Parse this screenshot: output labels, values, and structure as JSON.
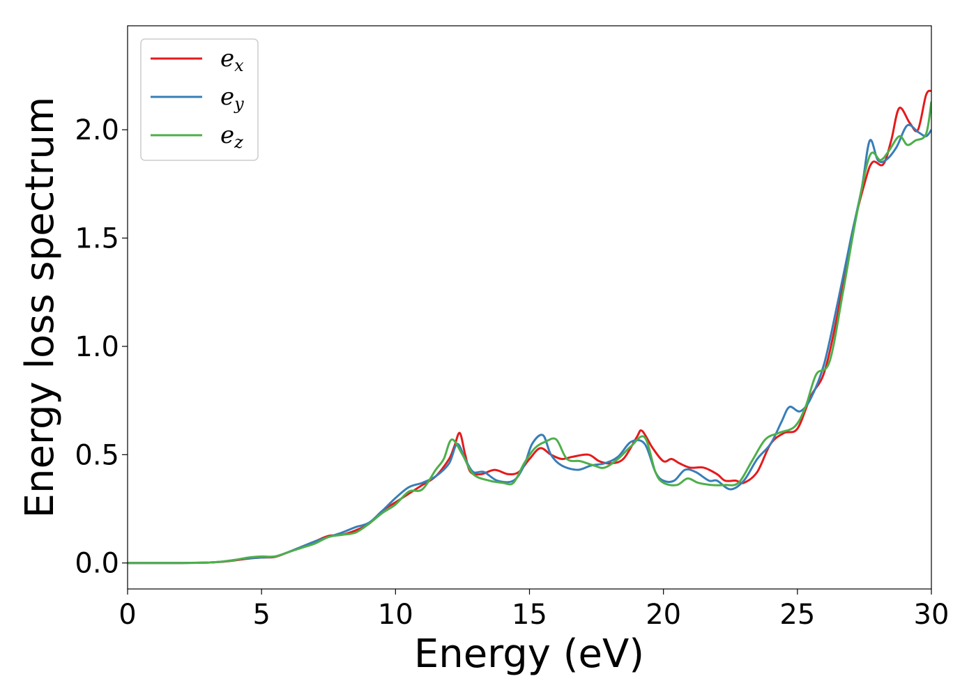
{
  "chart_data": {
    "type": "line",
    "title": "",
    "xlabel": "Energy (eV)",
    "ylabel": "Energy loss spectrum",
    "xlim": [
      0,
      30
    ],
    "ylim": [
      -0.12,
      2.48
    ],
    "xticks": [
      0,
      5,
      10,
      15,
      20,
      25,
      30
    ],
    "yticks": [
      "0.0",
      "0.5",
      "1.0",
      "1.5",
      "2.0"
    ],
    "grid": false,
    "legend_position": "top-left",
    "series": [
      {
        "name_main": "e",
        "name_sub": "x",
        "color": "#e41a1c",
        "points": [
          [
            0,
            0
          ],
          [
            1,
            0
          ],
          [
            2,
            0
          ],
          [
            3,
            0.002
          ],
          [
            3.5,
            0.005
          ],
          [
            4,
            0.012
          ],
          [
            4.5,
            0.02
          ],
          [
            5,
            0.025
          ],
          [
            5.5,
            0.028
          ],
          [
            6,
            0.05
          ],
          [
            6.5,
            0.075
          ],
          [
            7,
            0.1
          ],
          [
            7.5,
            0.125
          ],
          [
            8,
            0.13
          ],
          [
            8.5,
            0.15
          ],
          [
            9,
            0.18
          ],
          [
            9.5,
            0.24
          ],
          [
            10,
            0.28
          ],
          [
            10.5,
            0.32
          ],
          [
            11,
            0.36
          ],
          [
            11.5,
            0.4
          ],
          [
            12,
            0.48
          ],
          [
            12.2,
            0.54
          ],
          [
            12.4,
            0.6
          ],
          [
            12.6,
            0.5
          ],
          [
            12.8,
            0.42
          ],
          [
            13.2,
            0.41
          ],
          [
            13.7,
            0.43
          ],
          [
            14.2,
            0.41
          ],
          [
            14.6,
            0.42
          ],
          [
            15,
            0.48
          ],
          [
            15.4,
            0.53
          ],
          [
            15.8,
            0.5
          ],
          [
            16.2,
            0.48
          ],
          [
            16.6,
            0.49
          ],
          [
            17.2,
            0.5
          ],
          [
            17.6,
            0.47
          ],
          [
            18,
            0.46
          ],
          [
            18.5,
            0.48
          ],
          [
            19,
            0.58
          ],
          [
            19.2,
            0.61
          ],
          [
            19.6,
            0.53
          ],
          [
            20,
            0.47
          ],
          [
            20.3,
            0.48
          ],
          [
            20.6,
            0.46
          ],
          [
            21,
            0.44
          ],
          [
            21.5,
            0.44
          ],
          [
            22,
            0.41
          ],
          [
            22.3,
            0.38
          ],
          [
            22.7,
            0.38
          ],
          [
            23,
            0.37
          ],
          [
            23.5,
            0.42
          ],
          [
            24,
            0.55
          ],
          [
            24.5,
            0.6
          ],
          [
            25,
            0.62
          ],
          [
            25.5,
            0.77
          ],
          [
            26,
            0.88
          ],
          [
            26.5,
            1.15
          ],
          [
            27,
            1.5
          ],
          [
            27.5,
            1.75
          ],
          [
            27.8,
            1.85
          ],
          [
            28.2,
            1.84
          ],
          [
            28.5,
            1.95
          ],
          [
            28.8,
            2.1
          ],
          [
            29.2,
            2.03
          ],
          [
            29.5,
            2.0
          ],
          [
            29.8,
            2.16
          ],
          [
            30,
            2.18
          ]
        ]
      },
      {
        "name_main": "e",
        "name_sub": "y",
        "color": "#377eb8",
        "points": [
          [
            0,
            0
          ],
          [
            1,
            0
          ],
          [
            2,
            0
          ],
          [
            3,
            0.002
          ],
          [
            3.5,
            0.006
          ],
          [
            4,
            0.014
          ],
          [
            4.5,
            0.022
          ],
          [
            5,
            0.025
          ],
          [
            5.5,
            0.03
          ],
          [
            6,
            0.05
          ],
          [
            6.5,
            0.075
          ],
          [
            7,
            0.1
          ],
          [
            7.5,
            0.12
          ],
          [
            8,
            0.14
          ],
          [
            8.5,
            0.165
          ],
          [
            9,
            0.185
          ],
          [
            9.5,
            0.24
          ],
          [
            10,
            0.3
          ],
          [
            10.5,
            0.35
          ],
          [
            11,
            0.37
          ],
          [
            11.5,
            0.4
          ],
          [
            12,
            0.46
          ],
          [
            12.3,
            0.55
          ],
          [
            12.6,
            0.48
          ],
          [
            12.9,
            0.42
          ],
          [
            13.3,
            0.42
          ],
          [
            13.8,
            0.38
          ],
          [
            14.4,
            0.38
          ],
          [
            14.8,
            0.45
          ],
          [
            15.1,
            0.55
          ],
          [
            15.5,
            0.59
          ],
          [
            15.8,
            0.5
          ],
          [
            16.2,
            0.45
          ],
          [
            16.8,
            0.43
          ],
          [
            17.3,
            0.45
          ],
          [
            17.8,
            0.46
          ],
          [
            18.3,
            0.49
          ],
          [
            18.8,
            0.56
          ],
          [
            19.3,
            0.55
          ],
          [
            19.7,
            0.42
          ],
          [
            20,
            0.38
          ],
          [
            20.4,
            0.38
          ],
          [
            20.8,
            0.43
          ],
          [
            21.2,
            0.42
          ],
          [
            21.7,
            0.38
          ],
          [
            22,
            0.38
          ],
          [
            22.5,
            0.34
          ],
          [
            23,
            0.38
          ],
          [
            23.5,
            0.48
          ],
          [
            24,
            0.55
          ],
          [
            24.4,
            0.65
          ],
          [
            24.7,
            0.72
          ],
          [
            25.1,
            0.7
          ],
          [
            25.5,
            0.76
          ],
          [
            26,
            0.92
          ],
          [
            26.5,
            1.2
          ],
          [
            27,
            1.5
          ],
          [
            27.4,
            1.73
          ],
          [
            27.7,
            1.95
          ],
          [
            28,
            1.86
          ],
          [
            28.3,
            1.86
          ],
          [
            28.7,
            1.92
          ],
          [
            29.1,
            2.02
          ],
          [
            29.5,
            1.99
          ],
          [
            29.8,
            1.97
          ],
          [
            30,
            2.0
          ]
        ]
      },
      {
        "name_main": "e",
        "name_sub": "z",
        "color": "#4daf4a",
        "points": [
          [
            0,
            0
          ],
          [
            1,
            0
          ],
          [
            2,
            0
          ],
          [
            3,
            0.002
          ],
          [
            3.5,
            0.006
          ],
          [
            4,
            0.014
          ],
          [
            4.5,
            0.025
          ],
          [
            5,
            0.03
          ],
          [
            5.5,
            0.03
          ],
          [
            6,
            0.05
          ],
          [
            6.5,
            0.07
          ],
          [
            7,
            0.09
          ],
          [
            7.5,
            0.12
          ],
          [
            8,
            0.13
          ],
          [
            8.5,
            0.14
          ],
          [
            9,
            0.18
          ],
          [
            9.5,
            0.23
          ],
          [
            10,
            0.27
          ],
          [
            10.5,
            0.33
          ],
          [
            11,
            0.34
          ],
          [
            11.5,
            0.43
          ],
          [
            11.8,
            0.48
          ],
          [
            12.1,
            0.57
          ],
          [
            12.5,
            0.5
          ],
          [
            12.9,
            0.41
          ],
          [
            13.5,
            0.38
          ],
          [
            14,
            0.37
          ],
          [
            14.4,
            0.37
          ],
          [
            14.8,
            0.46
          ],
          [
            15.2,
            0.53
          ],
          [
            15.6,
            0.56
          ],
          [
            16,
            0.57
          ],
          [
            16.4,
            0.48
          ],
          [
            16.9,
            0.47
          ],
          [
            17.4,
            0.45
          ],
          [
            17.8,
            0.44
          ],
          [
            18.3,
            0.48
          ],
          [
            18.8,
            0.54
          ],
          [
            19.3,
            0.58
          ],
          [
            19.7,
            0.42
          ],
          [
            20,
            0.37
          ],
          [
            20.5,
            0.36
          ],
          [
            20.9,
            0.39
          ],
          [
            21.3,
            0.37
          ],
          [
            21.8,
            0.36
          ],
          [
            22.3,
            0.36
          ],
          [
            22.8,
            0.37
          ],
          [
            23.3,
            0.47
          ],
          [
            23.8,
            0.57
          ],
          [
            24.3,
            0.6
          ],
          [
            24.9,
            0.63
          ],
          [
            25.3,
            0.72
          ],
          [
            25.7,
            0.87
          ],
          [
            26.2,
            0.93
          ],
          [
            26.7,
            1.25
          ],
          [
            27.2,
            1.6
          ],
          [
            27.7,
            1.88
          ],
          [
            28.1,
            1.86
          ],
          [
            28.4,
            1.9
          ],
          [
            28.8,
            1.97
          ],
          [
            29.1,
            1.93
          ],
          [
            29.4,
            1.95
          ],
          [
            29.8,
            1.98
          ],
          [
            30,
            2.13
          ]
        ]
      }
    ]
  }
}
